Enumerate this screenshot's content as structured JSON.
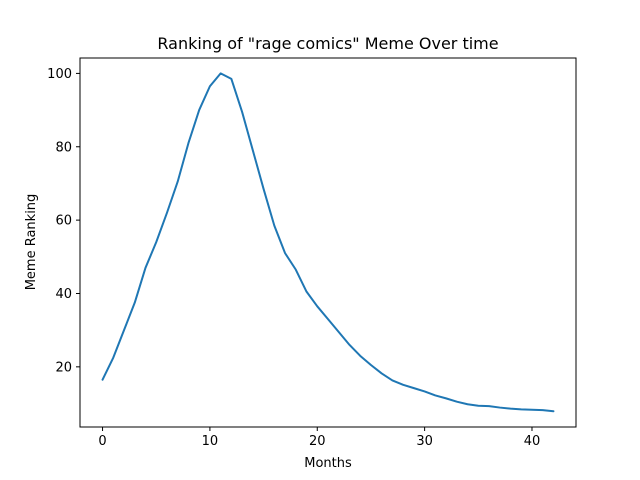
{
  "chart_data": {
    "type": "line",
    "title": "Ranking of \"rage comics\" Meme Over time",
    "xlabel": "Months",
    "ylabel": "Meme Ranking",
    "xlim": [
      -2.1,
      44.1
    ],
    "ylim": [
      3.6,
      104.2
    ],
    "xticks": [
      0,
      10,
      20,
      30,
      40
    ],
    "yticks": [
      20,
      40,
      60,
      80,
      100
    ],
    "grid": false,
    "line_color": "#1f77b4",
    "series": [
      {
        "x": [
          0,
          1,
          2,
          3,
          4,
          5,
          6,
          7,
          8,
          9,
          10,
          11,
          12,
          13,
          14,
          15,
          16,
          17,
          18,
          19,
          20,
          21,
          22,
          23,
          24,
          25,
          26,
          27,
          28,
          29,
          30,
          31,
          32,
          33,
          34,
          35,
          36,
          37,
          38,
          39,
          40,
          41,
          42
        ],
        "values": [
          16.5,
          22.5,
          30,
          37.5,
          47,
          54,
          62,
          70.5,
          81,
          90,
          96.5,
          100,
          98.5,
          89.5,
          79,
          68.5,
          58.5,
          51,
          46.5,
          40.5,
          36.5,
          33,
          29.5,
          26,
          23,
          20.5,
          18.2,
          16.3,
          15.1,
          14.2,
          13.3,
          12.2,
          11.4,
          10.5,
          9.8,
          9.4,
          9.3,
          8.9,
          8.6,
          8.4,
          8.3,
          8.2,
          7.9
        ]
      }
    ]
  }
}
